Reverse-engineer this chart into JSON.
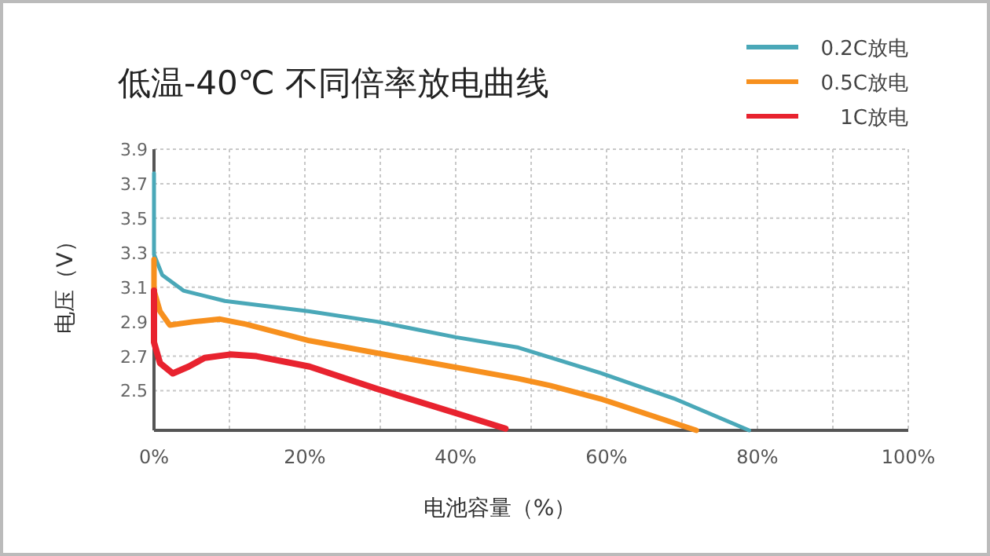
{
  "chart_data": {
    "type": "line",
    "title": "低温-40℃ 不同倍率放电曲线",
    "xlabel": "电池容量（%）",
    "ylabel": "电压（V）",
    "xlim": [
      0,
      100
    ],
    "ylim": [
      2.27,
      3.9
    ],
    "xticks": [
      {
        "value": 0,
        "label": "0%"
      },
      {
        "value": 10,
        "label": null
      },
      {
        "value": 20,
        "label": "20%"
      },
      {
        "value": 30,
        "label": null
      },
      {
        "value": 40,
        "label": "40%"
      },
      {
        "value": 50,
        "label": null
      },
      {
        "value": 60,
        "label": "60%"
      },
      {
        "value": 70,
        "label": null
      },
      {
        "value": 80,
        "label": "80%"
      },
      {
        "value": 90,
        "label": null
      },
      {
        "value": 100,
        "label": "100%"
      }
    ],
    "yticks": [
      2.5,
      2.7,
      2.9,
      3.1,
      3.3,
      3.5,
      3.7,
      3.9
    ],
    "grid": true,
    "legend": "top right",
    "series": [
      {
        "name": "0.2C放电",
        "color": "#4aa8b8",
        "x": [
          0,
          0,
          1.1,
          3.9,
          9.4,
          20.6,
          29.6,
          40,
          48.3,
          59.4,
          69.2,
          78.9
        ],
        "values": [
          3.76,
          3.29,
          3.17,
          3.08,
          3.02,
          2.96,
          2.9,
          2.81,
          2.75,
          2.6,
          2.45,
          2.27
        ]
      },
      {
        "name": "0.5C放电",
        "color": "#f7901e",
        "x": [
          0,
          0,
          0.8,
          2.1,
          5.3,
          8.75,
          12.2,
          20.6,
          33.1,
          48.3,
          52.5,
          59.4,
          71.9
        ],
        "values": [
          3.26,
          3.08,
          2.96,
          2.88,
          2.9,
          2.915,
          2.885,
          2.79,
          2.69,
          2.57,
          2.53,
          2.45,
          2.27
        ]
      },
      {
        "name": "1C放电",
        "color": "#e8232f",
        "x": [
          0,
          0,
          0.8,
          2.5,
          4.6,
          6.7,
          10.1,
          13.6,
          20.6,
          29.6,
          40,
          46.6
        ],
        "values": [
          3.08,
          2.78,
          2.66,
          2.6,
          2.64,
          2.69,
          2.71,
          2.7,
          2.64,
          2.51,
          2.37,
          2.28
        ]
      }
    ]
  }
}
